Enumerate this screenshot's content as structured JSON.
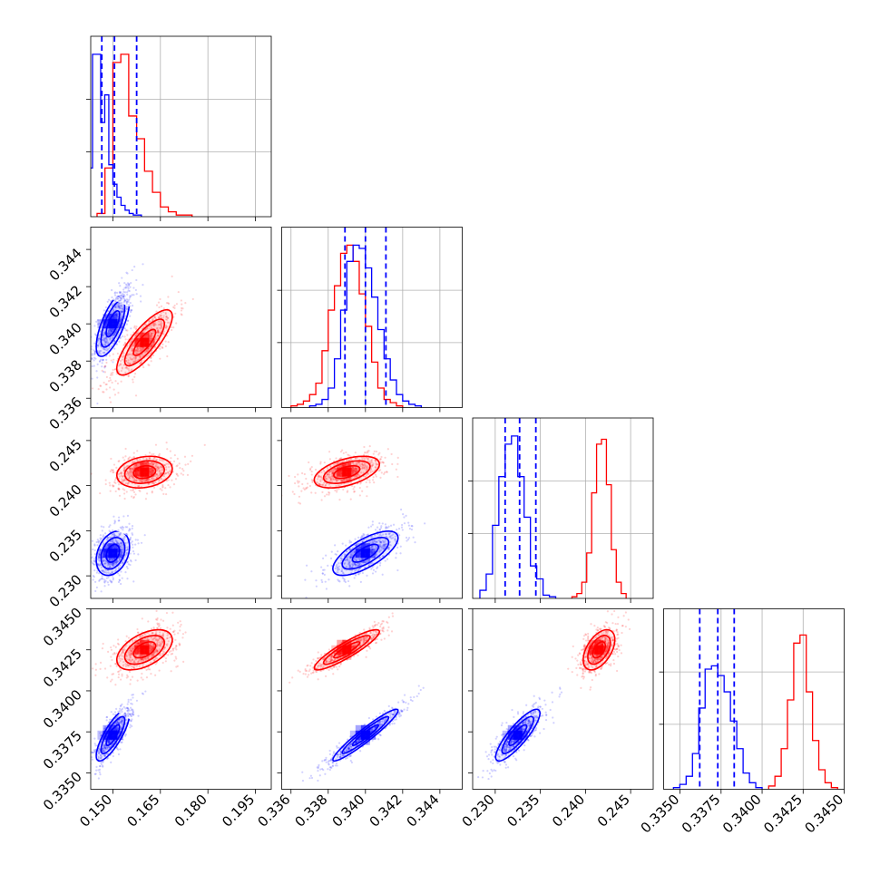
{
  "chart_data": {
    "type": "corner",
    "parameters": [
      {
        "ticks": [
          0.15,
          0.165,
          0.18,
          0.195
        ],
        "tick_labels": [
          "0.150",
          "0.165",
          "0.180",
          "0.195"
        ],
        "range": [
          0.143,
          0.2
        ]
      },
      {
        "ticks": [
          0.336,
          0.338,
          0.34,
          0.342,
          0.344
        ],
        "tick_labels": [
          "0.336",
          "0.338",
          "0.340",
          "0.342",
          "0.344"
        ],
        "range": [
          0.3355,
          0.3452
        ]
      },
      {
        "ticks": [
          0.23,
          0.235,
          0.24,
          0.245
        ],
        "tick_labels": [
          "0.230",
          "0.235",
          "0.240",
          "0.245"
        ],
        "range": [
          0.2275,
          0.2475
        ]
      },
      {
        "ticks": [
          0.335,
          0.3375,
          0.34,
          0.3425,
          0.345
        ],
        "tick_labels": [
          "0.3350",
          "0.3375",
          "0.3400",
          "0.3425",
          "0.3450"
        ],
        "range": [
          0.334,
          0.345
        ]
      }
    ],
    "series": [
      {
        "color": "#0000ff",
        "means": [
          0.15,
          0.34,
          0.2325,
          0.3373
        ],
        "stds": [
          0.003,
          0.001,
          0.0014,
          0.0009
        ],
        "correlations": {
          "1-0": 0.7,
          "2-0": 0.3,
          "2-1": 0.7,
          "3-0": 0.8,
          "3-1": 0.95,
          "3-2": 0.85
        },
        "quantiles": [
          [
            0.1465,
            0.1505,
            0.1575
          ],
          [
            0.3389,
            0.34,
            0.3411
          ],
          [
            0.2311,
            0.2327,
            0.2345
          ],
          [
            0.3362,
            0.3373,
            0.3383
          ]
        ],
        "histograms": [
          [
            0.01,
            0.3,
            1.0,
            1.0,
            0.58,
            0.75,
            0.32,
            0.2,
            0.12,
            0.07,
            0.04,
            0.02,
            0.01,
            0.01
          ],
          [
            0.01,
            0.02,
            0.05,
            0.12,
            0.3,
            0.6,
            0.9,
            1.0,
            0.98,
            0.86,
            0.68,
            0.48,
            0.3,
            0.17,
            0.08,
            0.04,
            0.02,
            0.01
          ],
          [
            0.05,
            0.15,
            0.45,
            0.75,
            0.95,
            1.0,
            0.75,
            0.5,
            0.2,
            0.12,
            0.02,
            0.01
          ],
          [
            0.01,
            0.03,
            0.08,
            0.22,
            0.5,
            0.74,
            0.76,
            0.7,
            0.6,
            0.42,
            0.25,
            0.1,
            0.04,
            0.01
          ]
        ]
      },
      {
        "color": "#ff0000",
        "means": [
          0.16,
          0.339,
          0.2415,
          0.3425
        ],
        "stds": [
          0.005,
          0.001,
          0.001,
          0.0007
        ],
        "correlations": {
          "1-0": 0.8,
          "2-0": 0.2,
          "2-1": 0.5,
          "3-0": 0.5,
          "3-1": 0.9,
          "3-2": 0.5
        },
        "quantiles": null,
        "histograms": [
          [
            0.02,
            0.3,
            0.95,
            1.0,
            0.62,
            0.48,
            0.28,
            0.15,
            0.06,
            0.03,
            0.01,
            0.01
          ],
          [
            0.01,
            0.02,
            0.04,
            0.08,
            0.15,
            0.35,
            0.6,
            0.75,
            0.95,
            1.0,
            0.9,
            0.7,
            0.5,
            0.28,
            0.12,
            0.05,
            0.03,
            0.01
          ],
          [
            0.01,
            0.03,
            0.1,
            0.28,
            0.65,
            0.95,
            0.98,
            0.7,
            0.3,
            0.1,
            0.03
          ],
          [
            0.02,
            0.08,
            0.25,
            0.55,
            0.9,
            0.95,
            0.6,
            0.3,
            0.12,
            0.04,
            0.01
          ]
        ]
      }
    ],
    "grid": true
  }
}
